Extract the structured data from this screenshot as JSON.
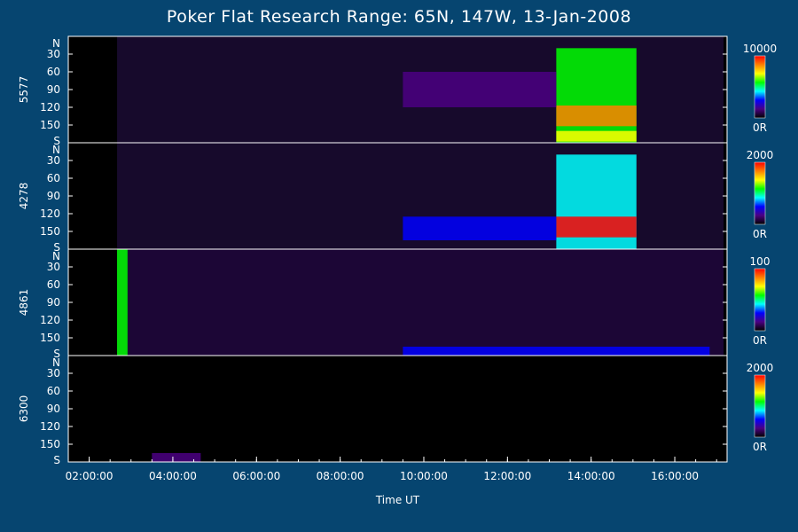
{
  "chart_data": {
    "type": "heatmap",
    "title": "Poker Flat Research Range: 65N, 147W, 13-Jan-2008",
    "xlabel": "Time UT",
    "x_ticks": [
      "02:00:00",
      "04:00:00",
      "06:00:00",
      "08:00:00",
      "10:00:00",
      "12:00:00",
      "14:00:00",
      "16:00:00"
    ],
    "xlim": [
      "01:30:00",
      "17:15:00"
    ],
    "y_ticks": [
      "N",
      "30",
      "60",
      "90",
      "120",
      "150",
      "S"
    ],
    "panels": [
      {
        "channel": "5577",
        "colorbar": {
          "max_label": "10000",
          "min_label": "0R"
        },
        "features": [
          {
            "kind": "band",
            "t_start": "13:10",
            "t_end": "15:05",
            "y_from": 20,
            "y_to": 180,
            "level": 0.6
          },
          {
            "kind": "band",
            "t_start": "13:10",
            "t_end": "15:05",
            "y_from": 117,
            "y_to": 152,
            "level": 0.8
          },
          {
            "kind": "band",
            "t_start": "13:10",
            "t_end": "15:05",
            "y_from": 160,
            "y_to": 178,
            "level": 0.75
          },
          {
            "kind": "band",
            "t_start": "09:30",
            "t_end": "13:10",
            "y_from": 60,
            "y_to": 120,
            "level": 0.15
          }
        ]
      },
      {
        "channel": "4278",
        "colorbar": {
          "max_label": "2000",
          "min_label": "0R"
        },
        "features": [
          {
            "kind": "band",
            "t_start": "13:10",
            "t_end": "15:05",
            "y_from": 20,
            "y_to": 180,
            "level": 0.45
          },
          {
            "kind": "band",
            "t_start": "13:10",
            "t_end": "15:05",
            "y_from": 125,
            "y_to": 160,
            "level": 1.0
          },
          {
            "kind": "band",
            "t_start": "09:30",
            "t_end": "13:10",
            "y_from": 125,
            "y_to": 165,
            "level": 0.22
          }
        ]
      },
      {
        "channel": "4861",
        "colorbar": {
          "max_label": "100",
          "min_label": "0R"
        },
        "features": [
          {
            "kind": "band",
            "t_start": "02:40",
            "t_end": "02:55",
            "y_from": 0,
            "y_to": 180,
            "level": 0.55
          },
          {
            "kind": "band",
            "t_start": "09:30",
            "t_end": "16:50",
            "y_from": 165,
            "y_to": 180,
            "level": 0.35
          }
        ]
      },
      {
        "channel": "6300",
        "colorbar": {
          "max_label": "2000",
          "min_label": "0R"
        },
        "features": [
          {
            "kind": "band",
            "t_start": "03:30",
            "t_end": "04:40",
            "y_from": 165,
            "y_to": 180,
            "level": 0.08
          }
        ]
      }
    ],
    "colormap": [
      "#000000",
      "#4b0082",
      "#0000ff",
      "#00ffff",
      "#00ff00",
      "#ffff00",
      "#ff8000",
      "#ff0000"
    ],
    "data_start": "02:40:00",
    "data_end": "17:10:00"
  }
}
